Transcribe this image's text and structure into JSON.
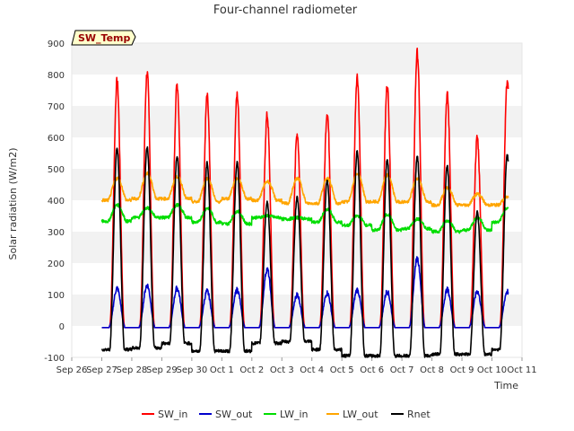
{
  "chart_data": {
    "type": "line",
    "title": "Four-channel radiometer",
    "xlabel": "Time",
    "ylabel": "Solar radiation (W/m2)",
    "annotation": "SW_Temp",
    "ylim": [
      -100,
      900
    ],
    "yticks": [
      -100,
      0,
      100,
      200,
      300,
      400,
      500,
      600,
      700,
      800,
      900
    ],
    "xlim": [
      0,
      15
    ],
    "xticks": [
      {
        "x": 0,
        "label": "Sep 26"
      },
      {
        "x": 1,
        "label": "Sep 27"
      },
      {
        "x": 2,
        "label": "Sep 28"
      },
      {
        "x": 3,
        "label": "Sep 29"
      },
      {
        "x": 4,
        "label": "Sep 30"
      },
      {
        "x": 5,
        "label": "Oct 1"
      },
      {
        "x": 6,
        "label": "Oct 2"
      },
      {
        "x": 7,
        "label": "Oct 3"
      },
      {
        "x": 8,
        "label": "Oct 4"
      },
      {
        "x": 9,
        "label": "Oct 5"
      },
      {
        "x": 10,
        "label": "Oct 6"
      },
      {
        "x": 11,
        "label": "Oct 7"
      },
      {
        "x": 12,
        "label": "Oct 8"
      },
      {
        "x": 13,
        "label": "Oct 9"
      },
      {
        "x": 14,
        "label": "Oct 10"
      },
      {
        "x": 15,
        "label": "Oct 11"
      }
    ],
    "grid": "horizontal bands",
    "legend_position": "bottom",
    "series": [
      {
        "name": "SW_in",
        "color": "#ff0000",
        "night": -5,
        "peaks": [
          780,
          805,
          770,
          730,
          735,
          670,
          612,
          680,
          795,
          765,
          870,
          735,
          600,
          780
        ]
      },
      {
        "name": "SW_out",
        "color": "#0000cc",
        "night": -5,
        "peaks": [
          120,
          130,
          120,
          110,
          115,
          180,
          100,
          105,
          115,
          110,
          215,
          115,
          110,
          110
        ]
      },
      {
        "name": "LW_in",
        "color": "#00dd00",
        "night_levels": [
          333,
          345,
          345,
          330,
          325,
          345,
          340,
          330,
          320,
          305,
          310,
          300,
          305,
          330
        ],
        "day_peaks": [
          385,
          375,
          385,
          375,
          365,
          350,
          345,
          370,
          350,
          355,
          340,
          335,
          345,
          375
        ]
      },
      {
        "name": "LW_out",
        "color": "#ffa500",
        "night_levels": [
          400,
          405,
          405,
          395,
          405,
          400,
          390,
          390,
          395,
          395,
          395,
          385,
          385,
          385
        ],
        "day_peaks": [
          470,
          485,
          475,
          470,
          470,
          460,
          470,
          470,
          485,
          480,
          470,
          440,
          420,
          410
        ]
      },
      {
        "name": "Rnet",
        "color": "#000000",
        "night_levels": [
          -75,
          -70,
          -55,
          -80,
          -80,
          -55,
          -50,
          -75,
          -95,
          -95,
          -95,
          -90,
          -90,
          -75
        ],
        "peaks": [
          565,
          570,
          540,
          520,
          520,
          395,
          410,
          465,
          555,
          530,
          540,
          510,
          365,
          545
        ]
      }
    ]
  }
}
